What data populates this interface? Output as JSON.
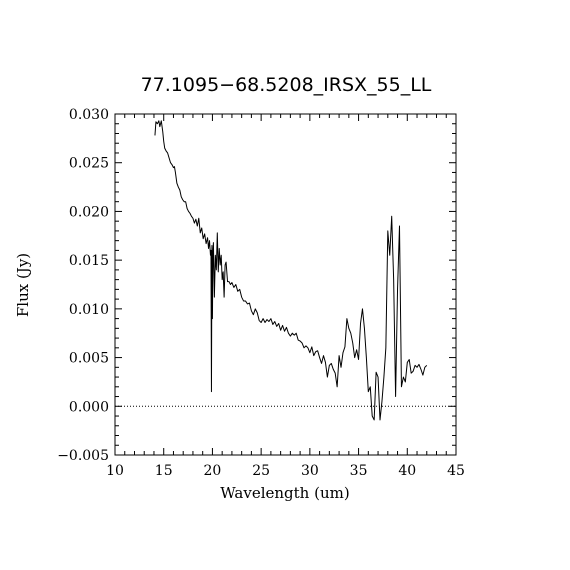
{
  "chart_data": {
    "type": "line",
    "title": "77.1095−68.5208_IRSX_55_LL",
    "xlabel": "Wavelength (um)",
    "ylabel": "Flux (Jy)",
    "xlim": [
      10,
      45
    ],
    "ylim": [
      -0.005,
      0.03
    ],
    "x_ticks": [
      10,
      15,
      20,
      25,
      30,
      35,
      40,
      45
    ],
    "x_tick_labels": [
      "10",
      "15",
      "20",
      "25",
      "30",
      "35",
      "40",
      "45"
    ],
    "y_ticks": [
      -0.005,
      0.0,
      0.005,
      0.01,
      0.015,
      0.02,
      0.025,
      0.03
    ],
    "y_tick_labels": [
      "−0.005",
      "0.000",
      "0.005",
      "0.010",
      "0.015",
      "0.020",
      "0.025",
      "0.030"
    ],
    "zero_line": 0.0,
    "grid": false,
    "series": [
      {
        "x": [
          14.1,
          14.2,
          14.35,
          14.5,
          14.6,
          14.75,
          14.9,
          15.0,
          15.1,
          15.25,
          15.4,
          15.55,
          15.7,
          15.85,
          16.0,
          16.1,
          16.2,
          16.35,
          16.5,
          16.65,
          16.8,
          16.95,
          17.1,
          17.25,
          17.4,
          17.55,
          17.7,
          17.85,
          18.0,
          18.15,
          18.3,
          18.45,
          18.6,
          18.75,
          18.9,
          19.05,
          19.2,
          19.35,
          19.5,
          19.6,
          19.7,
          19.8,
          19.85,
          19.9,
          19.95,
          20.0,
          20.05,
          20.1,
          20.2,
          20.3,
          20.4,
          20.5,
          20.6,
          20.7,
          20.8,
          20.9,
          21.0,
          21.1,
          21.2,
          21.3,
          21.4,
          21.55,
          21.7,
          21.85,
          22.0,
          22.2,
          22.4,
          22.6,
          22.8,
          23.0,
          23.2,
          23.4,
          23.6,
          23.8,
          24.0,
          24.2,
          24.4,
          24.6,
          24.8,
          25.0,
          25.2,
          25.4,
          25.6,
          25.8,
          26.0,
          26.2,
          26.4,
          26.6,
          26.8,
          27.0,
          27.2,
          27.4,
          27.6,
          27.8,
          28.0,
          28.2,
          28.4,
          28.6,
          28.8,
          29.0,
          29.2,
          29.4,
          29.6,
          29.8,
          30.0,
          30.2,
          30.4,
          30.6,
          30.8,
          31.0,
          31.2,
          31.4,
          31.6,
          31.8,
          32.0,
          32.2,
          32.4,
          32.6,
          32.8,
          33.0,
          33.2,
          33.4,
          33.6,
          33.8,
          34.0,
          34.2,
          34.4,
          34.6,
          34.8,
          35.0,
          35.2,
          35.4,
          35.6,
          35.8,
          36.0,
          36.2,
          36.4,
          36.6,
          36.8,
          37.0,
          37.2,
          37.4,
          37.6,
          37.8,
          38.0,
          38.2,
          38.4,
          38.6,
          38.8,
          39.0,
          39.2,
          39.4,
          39.6,
          39.8,
          40.0,
          40.2,
          40.4,
          40.6,
          40.8,
          41.0,
          41.2,
          41.4,
          41.6,
          41.8,
          42.0
        ],
        "y": [
          0.0278,
          0.0292,
          0.029,
          0.0293,
          0.0287,
          0.0293,
          0.0282,
          0.0272,
          0.0265,
          0.0262,
          0.026,
          0.0255,
          0.025,
          0.0248,
          0.0245,
          0.0246,
          0.024,
          0.0229,
          0.0225,
          0.0222,
          0.0215,
          0.0212,
          0.021,
          0.021,
          0.0203,
          0.02,
          0.0198,
          0.0195,
          0.0193,
          0.0188,
          0.0192,
          0.0185,
          0.0193,
          0.0178,
          0.0183,
          0.0172,
          0.0177,
          0.0167,
          0.0173,
          0.0162,
          0.017,
          0.0155,
          0.016,
          0.0015,
          0.0165,
          0.009,
          0.0158,
          0.0168,
          0.0112,
          0.0155,
          0.014,
          0.0178,
          0.0138,
          0.0162,
          0.0145,
          0.0155,
          0.013,
          0.0138,
          0.0112,
          0.0145,
          0.0148,
          0.0128,
          0.0128,
          0.0125,
          0.0127,
          0.0122,
          0.0125,
          0.0118,
          0.012,
          0.0112,
          0.0108,
          0.0108,
          0.0105,
          0.0106,
          0.0098,
          0.0094,
          0.01,
          0.0096,
          0.0088,
          0.0086,
          0.009,
          0.0086,
          0.0089,
          0.0087,
          0.009,
          0.0084,
          0.0087,
          0.0082,
          0.0085,
          0.0078,
          0.0083,
          0.0077,
          0.0081,
          0.0075,
          0.0072,
          0.0075,
          0.0073,
          0.0075,
          0.0068,
          0.0067,
          0.0065,
          0.006,
          0.0062,
          0.006,
          0.0055,
          0.0061,
          0.0052,
          0.0056,
          0.0057,
          0.005,
          0.0044,
          0.0052,
          0.0045,
          0.003,
          0.0042,
          0.0044,
          0.0038,
          0.0034,
          0.002,
          0.0052,
          0.004,
          0.0055,
          0.0061,
          0.009,
          0.008,
          0.0075,
          0.0065,
          0.005,
          0.0058,
          0.0048,
          0.0085,
          0.01,
          0.008,
          0.005,
          0.0015,
          0.002,
          -0.001,
          -0.0014,
          0.0035,
          0.003,
          -0.0014,
          0.0005,
          0.003,
          0.006,
          0.018,
          0.0155,
          0.0195,
          0.013,
          0.001,
          0.012,
          0.0185,
          0.002,
          0.003,
          0.0025,
          0.0045,
          0.0048,
          0.0034,
          0.0036,
          0.0042,
          0.004,
          0.0043,
          0.0038,
          0.0032,
          0.004,
          0.0042
        ]
      }
    ]
  }
}
